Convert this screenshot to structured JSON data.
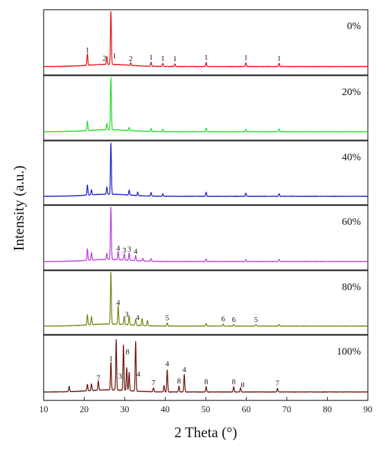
{
  "chart_data": {
    "type": "line",
    "xlabel": "2 Theta (°)",
    "ylabel": "Intensity  (a.u.)",
    "xlim": [
      10,
      90
    ],
    "xticks": [
      10,
      20,
      30,
      40,
      50,
      60,
      70,
      80,
      90
    ],
    "grid": false,
    "panels": [
      {
        "label": "0%",
        "color": "#e8151b",
        "peaks": [
          [
            20.8,
            0.22
          ],
          [
            25.6,
            0.15
          ],
          [
            26.6,
            1.0
          ],
          [
            31.5,
            0.05
          ],
          [
            36.5,
            0.08
          ],
          [
            39.4,
            0.06
          ],
          [
            42.4,
            0.05
          ],
          [
            50.1,
            0.08
          ],
          [
            59.9,
            0.07
          ],
          [
            68.1,
            0.06
          ]
        ],
        "annotations": [
          {
            "x": 20.8,
            "text": "1"
          },
          {
            "x": 25.0,
            "text": "2"
          },
          {
            "x": 27.5,
            "text": "1"
          },
          {
            "x": 31.5,
            "text": "2"
          },
          {
            "x": 36.5,
            "text": "1"
          },
          {
            "x": 39.4,
            "text": "1"
          },
          {
            "x": 42.4,
            "text": "1"
          },
          {
            "x": 50.1,
            "text": "1"
          },
          {
            "x": 59.9,
            "text": "1"
          },
          {
            "x": 68.1,
            "text": "1"
          }
        ]
      },
      {
        "label": "20%",
        "color": "#22e02a",
        "peaks": [
          [
            20.8,
            0.18
          ],
          [
            25.6,
            0.12
          ],
          [
            26.6,
            1.0
          ],
          [
            31.1,
            0.06
          ],
          [
            36.5,
            0.06
          ],
          [
            39.4,
            0.05
          ],
          [
            50.1,
            0.07
          ],
          [
            59.9,
            0.05
          ],
          [
            68.1,
            0.05
          ]
        ],
        "annotations": []
      },
      {
        "label": "40%",
        "color": "#2222cc",
        "peaks": [
          [
            20.8,
            0.2
          ],
          [
            21.8,
            0.1
          ],
          [
            25.6,
            0.14
          ],
          [
            26.6,
            1.0
          ],
          [
            31.1,
            0.1
          ],
          [
            33.2,
            0.07
          ],
          [
            36.5,
            0.07
          ],
          [
            39.4,
            0.05
          ],
          [
            50.1,
            0.08
          ],
          [
            59.9,
            0.06
          ],
          [
            68.1,
            0.05
          ]
        ],
        "annotations": []
      },
      {
        "label": "60%",
        "color": "#c040e0",
        "peaks": [
          [
            20.8,
            0.22
          ],
          [
            21.8,
            0.14
          ],
          [
            25.6,
            0.12
          ],
          [
            26.6,
            1.0
          ],
          [
            28.4,
            0.16
          ],
          [
            29.9,
            0.12
          ],
          [
            31.1,
            0.14
          ],
          [
            32.7,
            0.1
          ],
          [
            34.5,
            0.05
          ],
          [
            36.5,
            0.05
          ],
          [
            50.1,
            0.05
          ],
          [
            59.9,
            0.04
          ],
          [
            68.1,
            0.04
          ]
        ],
        "annotations": [
          {
            "x": 28.4,
            "text": "4"
          },
          {
            "x": 29.9,
            "text": "3"
          },
          {
            "x": 31.1,
            "text": "3"
          },
          {
            "x": 32.7,
            "text": "4"
          }
        ]
      },
      {
        "label": "80%",
        "color": "#7a8a1a",
        "peaks": [
          [
            20.8,
            0.2
          ],
          [
            21.8,
            0.16
          ],
          [
            26.6,
            1.0
          ],
          [
            28.4,
            0.36
          ],
          [
            29.9,
            0.16
          ],
          [
            31.1,
            0.18
          ],
          [
            32.7,
            0.12
          ],
          [
            34.3,
            0.14
          ],
          [
            35.6,
            0.1
          ],
          [
            40.5,
            0.06
          ],
          [
            50.1,
            0.05
          ],
          [
            54.3,
            0.04
          ],
          [
            56.9,
            0.03
          ],
          [
            62.4,
            0.03
          ],
          [
            68.1,
            0.03
          ]
        ],
        "annotations": [
          {
            "x": 28.4,
            "text": "4"
          },
          {
            "x": 30.5,
            "text": "3"
          },
          {
            "x": 33.2,
            "text": "4"
          },
          {
            "x": 40.5,
            "text": "5"
          },
          {
            "x": 54.3,
            "text": "6"
          },
          {
            "x": 56.9,
            "text": "6"
          },
          {
            "x": 62.4,
            "text": "5"
          }
        ]
      },
      {
        "label": "100%",
        "color": "#6b1a12",
        "peaks": [
          [
            16.3,
            0.1
          ],
          [
            20.8,
            0.12
          ],
          [
            21.8,
            0.13
          ],
          [
            23.5,
            0.17
          ],
          [
            26.6,
            0.53
          ],
          [
            27.9,
            0.96
          ],
          [
            29.7,
            0.86
          ],
          [
            30.5,
            0.43
          ],
          [
            31.1,
            0.35
          ],
          [
            32.7,
            0.94
          ],
          [
            37.1,
            0.08
          ],
          [
            39.7,
            0.12
          ],
          [
            40.5,
            0.42
          ],
          [
            43.4,
            0.11
          ],
          [
            44.7,
            0.33
          ],
          [
            50.1,
            0.1
          ],
          [
            56.9,
            0.1
          ],
          [
            58.6,
            0.08
          ],
          [
            67.7,
            0.07
          ]
        ],
        "annotations": [
          {
            "x": 26.6,
            "text": "1"
          },
          {
            "x": 28.9,
            "text": "3"
          },
          {
            "x": 30.7,
            "text": "8"
          },
          {
            "x": 33.4,
            "text": "4"
          },
          {
            "x": 40.5,
            "text": "4"
          },
          {
            "x": 44.7,
            "text": "4"
          },
          {
            "x": 23.5,
            "text": "7"
          },
          {
            "x": 37.1,
            "text": "7"
          },
          {
            "x": 43.4,
            "text": "8"
          },
          {
            "x": 50.1,
            "text": "8"
          },
          {
            "x": 56.9,
            "text": "8"
          },
          {
            "x": 59.1,
            "text": "8"
          },
          {
            "x": 67.7,
            "text": "7"
          }
        ]
      }
    ]
  }
}
